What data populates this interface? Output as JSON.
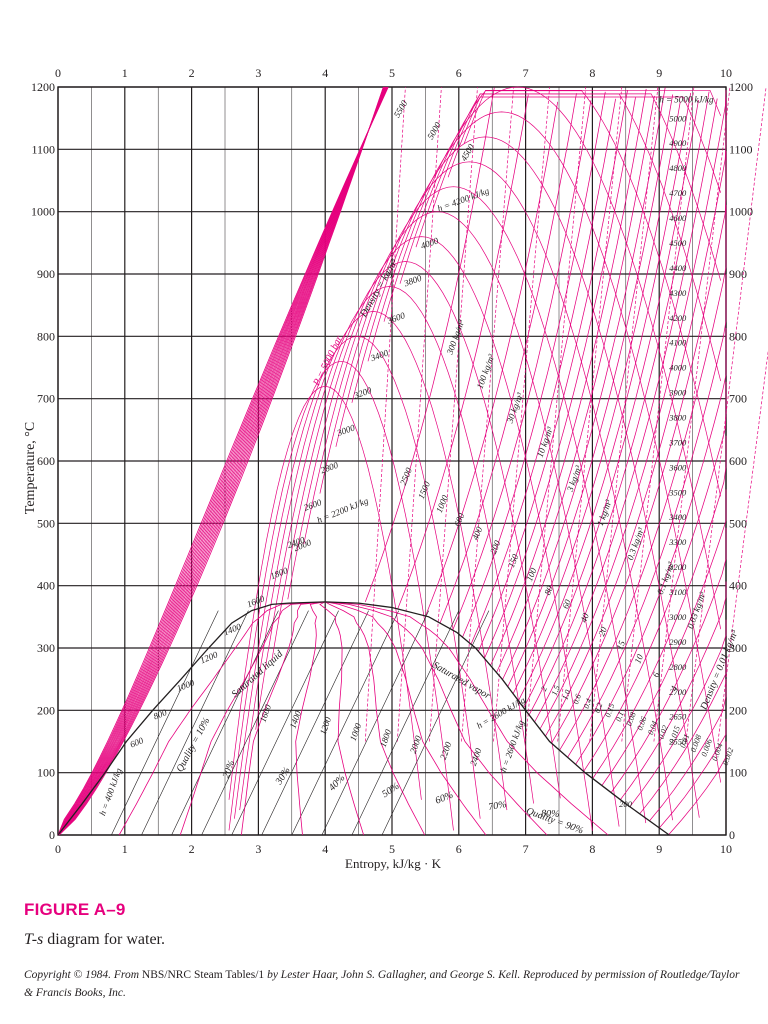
{
  "chart_data": {
    "type": "line",
    "xlabel": "Entropy, kJ/kg · K",
    "ylabel": "Temperature, °C",
    "xlim": [
      0,
      10
    ],
    "ylim": [
      0,
      1200
    ],
    "x_ticks": [
      "0",
      "1",
      "2",
      "3",
      "4",
      "5",
      "6",
      "7",
      "8",
      "9",
      "10"
    ],
    "y_ticks": [
      "0",
      "100",
      "200",
      "300",
      "400",
      "500",
      "600",
      "700",
      "800",
      "900",
      "1000",
      "1100",
      "1200"
    ],
    "grid": true,
    "accent_color": "#e6007e",
    "saturation_dome": {
      "label_liquid": "Saturated liquid",
      "label_vapor": "Saturated vapor",
      "liquid": [
        [
          0,
          0
        ],
        [
          0.361,
          50
        ],
        [
          0.703,
          100
        ],
        [
          1.024,
          150
        ],
        [
          1.418,
          200
        ],
        [
          1.841,
          250
        ],
        [
          2.255,
          300
        ],
        [
          2.6,
          340
        ],
        [
          2.9,
          360
        ],
        [
          3.2,
          370
        ],
        [
          3.45,
          372
        ],
        [
          4.0,
          373.9
        ]
      ],
      "vapor": [
        [
          4.0,
          373.9
        ],
        [
          4.5,
          372
        ],
        [
          5.0,
          365
        ],
        [
          5.55,
          350
        ],
        [
          5.97,
          325
        ],
        [
          6.25,
          300
        ],
        [
          6.65,
          250
        ],
        [
          7.0,
          200
        ],
        [
          7.36,
          150
        ],
        [
          7.89,
          100
        ],
        [
          8.5,
          50
        ],
        [
          9.15,
          0
        ]
      ]
    },
    "quality_lines": [
      {
        "label": "Quality = 10%",
        "q": 0.1
      },
      {
        "label": "20%",
        "q": 0.2
      },
      {
        "label": "30%",
        "q": 0.3
      },
      {
        "label": "40%",
        "q": 0.4
      },
      {
        "label": "50%",
        "q": 0.5
      },
      {
        "label": "60%",
        "q": 0.6
      },
      {
        "label": "70%",
        "q": 0.7
      },
      {
        "label": "80%",
        "q": 0.8
      },
      {
        "label": "Quality = 90%",
        "q": 0.9
      }
    ],
    "pressure_lines_bar": [
      "P = 5000 bar",
      "2500",
      "1500",
      "1000",
      "600",
      "400",
      "200",
      "150",
      "100",
      "80",
      "60",
      "40",
      "20",
      "15",
      "10",
      "6",
      "4",
      "2",
      "1.5",
      "1.0",
      "0.6",
      "0.4",
      "0.2",
      "0.15",
      "0.1",
      "0.08",
      "0.06",
      "0.04",
      "0.02",
      "0.015",
      "0.01",
      "0.008",
      "0.006",
      "0.004",
      "0.002"
    ],
    "enthalpy_labels_kJkg": [
      "h = 5000 kJ/kg",
      "5000",
      "4900",
      "4800",
      "4700",
      "4600",
      "4500",
      "4400",
      "4300",
      "4200",
      "4100",
      "4000",
      "3900",
      "3800",
      "3700",
      "3600",
      "3500",
      "3400",
      "3300",
      "3200",
      "3100",
      "3000",
      "2900",
      "2800",
      "2700",
      "2650",
      "2550",
      "5500",
      "5000",
      "4500",
      "h = 4200 kJ/kg",
      "4000",
      "3800",
      "3600",
      "3400",
      "3200",
      "3000",
      "2800",
      "2600",
      "2400",
      "h = 2200 kJ/kg",
      "2000",
      "1800",
      "1600",
      "1400",
      "1200",
      "1000",
      "800",
      "600",
      "1600",
      "1400",
      "1200",
      "1000",
      "1800",
      "2000",
      "2200",
      "2400",
      "h = 2600 kJ/kg",
      "h = 2600 kJ/kg",
      "200",
      "h = 400 kJ/kg"
    ],
    "density_labels": [
      "Density = kg/m³",
      "300 kg/m³",
      "100 kg/m³",
      "30 kg/m³",
      "10 kg/m³",
      "3 kg/m³",
      "1 kg/m³",
      "0.3 kg/m³",
      "0.1 kg/m³",
      "0.03 kg/m³",
      "Density = 0.01 kg/m³"
    ]
  },
  "figure": {
    "label": "FIGURE A–9",
    "caption_italic": "T-s",
    "caption_rest": " diagram for water.",
    "copyright_1": "Copyright © 1984. From ",
    "copyright_roman": "NBS/NRC Steam Tables/1",
    "copyright_2": " by Lester Haar, John S. Gallagher, and George S. Kell. Reproduced by permission of Routledge/Taylor & Francis Books, Inc."
  }
}
